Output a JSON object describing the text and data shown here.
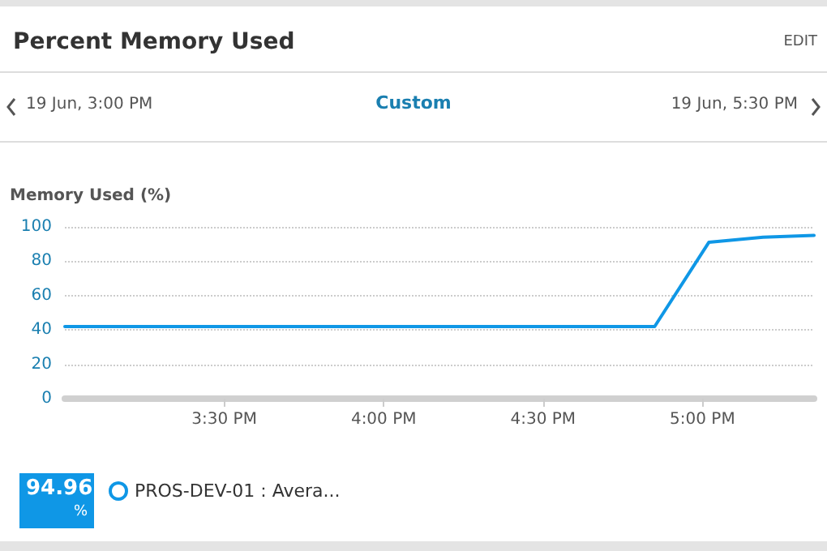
{
  "chart_data": {
    "type": "line",
    "title": "Percent Memory Used",
    "subtitle": "Custom",
    "ylabel": "Memory Used (%)",
    "annotations": [
      "EDIT",
      "19 Jun, 3:00 PM",
      "19 Jun, 5:30 PM",
      "94.96 %"
    ],
    "series": [
      {
        "name": "PROS-DEV-01 : Avera...",
        "color": "#0f97e6",
        "x": [
          15,
          16.85,
          17.02,
          17.19,
          17.35
        ],
        "values": [
          42,
          42,
          91,
          94,
          95
        ]
      }
    ],
    "xlim": [
      15,
      17.35
    ],
    "xticks": [
      {
        "value": 15.5,
        "label": "3:30 PM"
      },
      {
        "value": 16,
        "label": "4:00 PM"
      },
      {
        "value": 16.5,
        "label": "4:30 PM"
      },
      {
        "value": 17,
        "label": "5:00 PM"
      }
    ],
    "ylim": [
      0,
      100
    ],
    "yticks": [
      0,
      20,
      40,
      60,
      80,
      100
    ],
    "grid": "y",
    "legend": "bottom left",
    "marker": "none",
    "line_style": "solid"
  }
}
